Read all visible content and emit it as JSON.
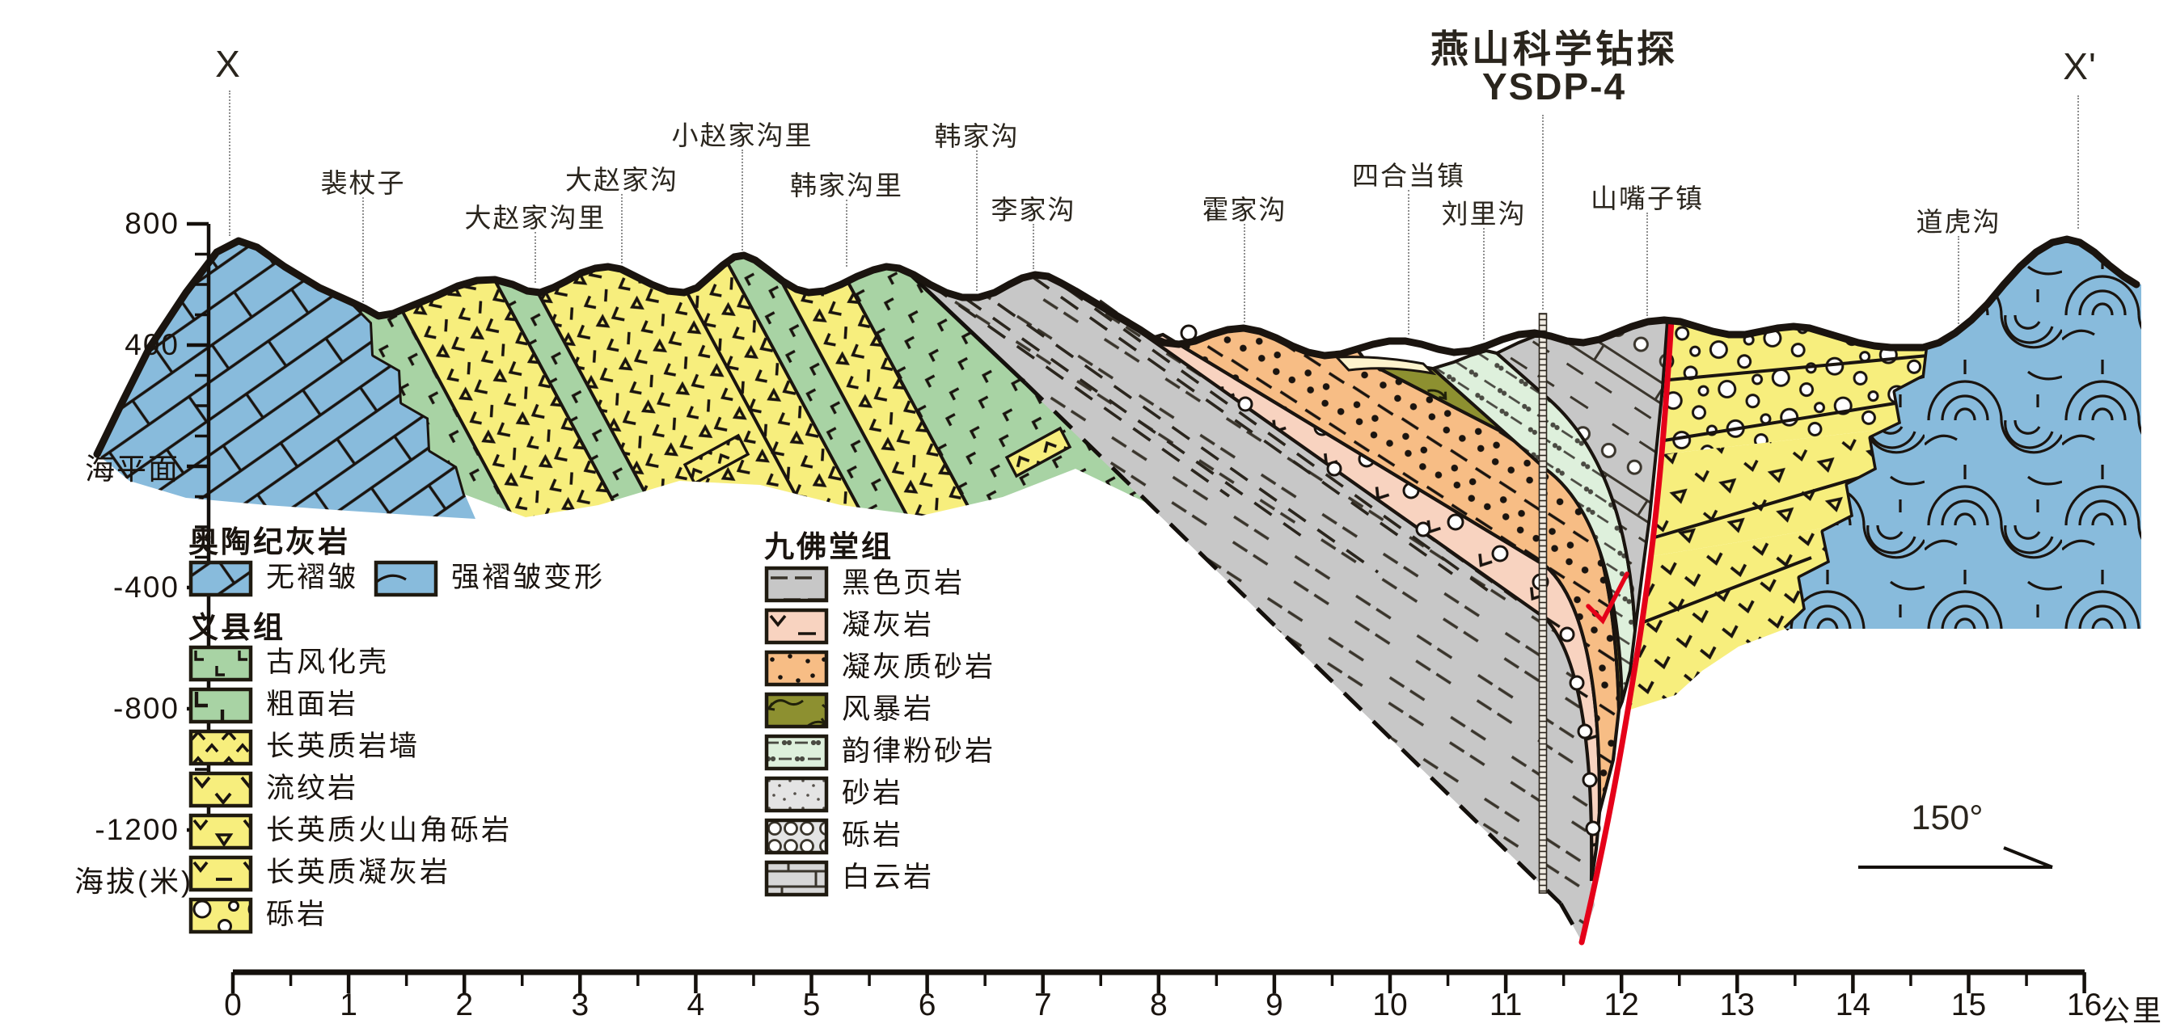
{
  "title": {
    "line1": "燕山科学钻探",
    "line2": "YSDP-4"
  },
  "section_markers": {
    "left": "X",
    "right": "X'"
  },
  "place_labels": [
    "裴杖子",
    "大赵家沟里",
    "大赵家沟",
    "小赵家沟里",
    "韩家沟里",
    "韩家沟",
    "李家沟",
    "霍家沟",
    "四合当镇",
    "刘里沟",
    "山嘴子镇",
    "道虎沟"
  ],
  "axes": {
    "elevation": {
      "axis_label": "海拔(米)",
      "major_ticks": [
        {
          "label": "800",
          "meters": 800
        },
        {
          "label": "400",
          "meters": 400
        },
        {
          "label": "海平面",
          "meters": 0
        },
        {
          "label": "-400",
          "meters": -400
        },
        {
          "label": "-800",
          "meters": -800
        },
        {
          "label": "-1200",
          "meters": -1200
        }
      ],
      "minor_step_m": 100
    },
    "distance": {
      "unit_label": "公里",
      "tick_labels": [
        "0",
        "1",
        "2",
        "3",
        "4",
        "5",
        "6",
        "7",
        "8",
        "9",
        "10",
        "11",
        "12",
        "13",
        "14",
        "15",
        "16"
      ],
      "minor_step_km": 0.5
    }
  },
  "legends": [
    {
      "title": "奥陶纪灰岩",
      "items": [
        {
          "label": "无褶皱",
          "swatch": "lime-unfolded"
        },
        {
          "label": "强褶皱变形",
          "swatch": "lime-folded"
        }
      ]
    },
    {
      "title": "义县组",
      "items": [
        {
          "label": "古风化壳",
          "swatch": "paleo-crust"
        },
        {
          "label": "粗面岩",
          "swatch": "trachyte"
        },
        {
          "label": "长英质岩墙",
          "swatch": "felsic-dike"
        },
        {
          "label": "流纹岩",
          "swatch": "rhyolite"
        },
        {
          "label": "长英质火山角砾岩",
          "swatch": "felsic-breccia"
        },
        {
          "label": "长英质凝灰岩",
          "swatch": "felsic-tuff"
        },
        {
          "label": "砾岩",
          "swatch": "conglomerate-y"
        }
      ]
    },
    {
      "title": "九佛堂组",
      "items": [
        {
          "label": "黑色页岩",
          "swatch": "black-shale"
        },
        {
          "label": "凝灰岩",
          "swatch": "tuff-pink"
        },
        {
          "label": "凝灰质砂岩",
          "swatch": "tuffaceous-sandstone"
        },
        {
          "label": "风暴岩",
          "swatch": "storm-rock"
        },
        {
          "label": "韵律粉砂岩",
          "swatch": "rhythmic-siltstone"
        },
        {
          "label": "砂岩",
          "swatch": "sandstone"
        },
        {
          "label": "砾岩",
          "swatch": "conglomerate-g"
        },
        {
          "label": "白云岩",
          "swatch": "dolomite"
        }
      ]
    }
  ],
  "annotations": {
    "strike_label": "150°"
  },
  "palette": {
    "limestone_blue": "#88bbdc",
    "unit_green": "#a8d3a4",
    "unit_yellow": "#f7ee7d",
    "shale_gray": "#c7c7c7",
    "tuff_pink": "#f8d3c0",
    "tuffaceous_orange": "#f7bd85",
    "storm_olive": "#8d9030",
    "rhythmic_ltgreen": "#def0dc",
    "sandstone_gray": "#e4e4e4",
    "dolomite_gray": "#d7d7d7",
    "cream": "#fdf3cd",
    "fault_red": "#e50019",
    "line_ink": "#1a140f"
  }
}
